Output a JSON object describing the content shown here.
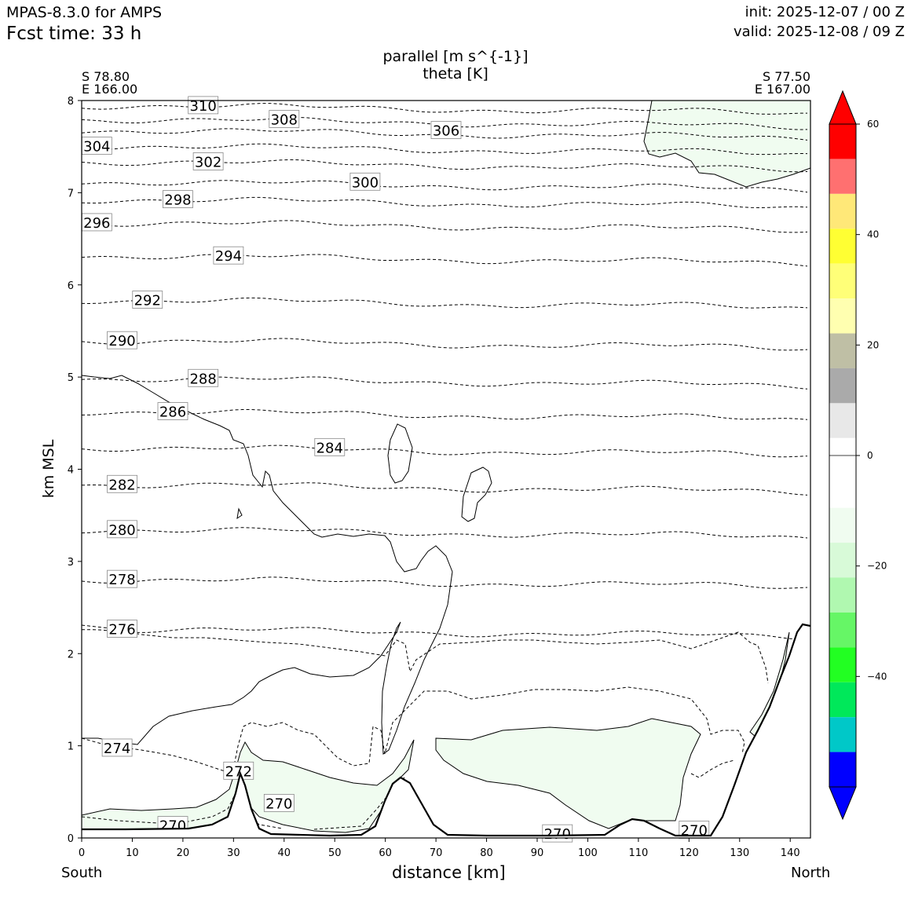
{
  "header": {
    "model": "MPAS-8.3.0 for AMPS",
    "fcst_time": "Fcst time:   33 h",
    "init": "init: 2025-12-07 / 00 Z",
    "valid": "valid: 2025-12-08 / 09 Z"
  },
  "chart_data": {
    "type": "cross-section",
    "title": "parallel [m s^{-1}]",
    "subtitle": "theta [K]",
    "xlabel": "distance [km]",
    "ylabel": "km MSL",
    "xlim": [
      0,
      144
    ],
    "ylim": [
      0,
      8
    ],
    "xticks": [
      0,
      10,
      20,
      30,
      40,
      50,
      60,
      70,
      80,
      90,
      100,
      110,
      120,
      130,
      140
    ],
    "yticks": [
      0,
      1,
      2,
      3,
      4,
      5,
      6,
      7,
      8
    ],
    "endpoints": {
      "left_lat": "S 78.80",
      "left_lon": "E 166.00",
      "left_label": "South",
      "right_lat": "S 77.50",
      "right_lon": "E 167.00",
      "right_label": "North"
    },
    "theta_contours": [
      {
        "level": 270,
        "label_x": 18,
        "label_y": 0.14
      },
      {
        "level": 270,
        "label_x": 39,
        "label_y": 0.38
      },
      {
        "level": 270,
        "label_x": 94,
        "label_y": 0.05
      },
      {
        "level": 270,
        "label_x": 121,
        "label_y": 0.09
      },
      {
        "level": 272,
        "label_x": 31,
        "label_y": 0.73
      },
      {
        "level": 274,
        "label_x": 7,
        "label_y": 0.98
      },
      {
        "level": 276,
        "label_x": 8,
        "label_y": 2.27
      },
      {
        "level": 278,
        "label_x": 8,
        "label_y": 2.81
      },
      {
        "level": 280,
        "label_x": 8,
        "label_y": 3.35
      },
      {
        "level": 282,
        "label_x": 8,
        "label_y": 3.84
      },
      {
        "level": 284,
        "label_x": 49,
        "label_y": 4.24
      },
      {
        "level": 286,
        "label_x": 18,
        "label_y": 4.63
      },
      {
        "level": 288,
        "label_x": 24,
        "label_y": 4.99
      },
      {
        "level": 290,
        "label_x": 8,
        "label_y": 5.4
      },
      {
        "level": 292,
        "label_x": 13,
        "label_y": 5.84
      },
      {
        "level": 294,
        "label_x": 29,
        "label_y": 6.32
      },
      {
        "level": 296,
        "label_x": 3,
        "label_y": 6.68
      },
      {
        "level": 298,
        "label_x": 19,
        "label_y": 6.93
      },
      {
        "level": 300,
        "label_x": 56,
        "label_y": 7.12
      },
      {
        "level": 302,
        "label_x": 25,
        "label_y": 7.34
      },
      {
        "level": 304,
        "label_x": 3,
        "label_y": 7.51
      },
      {
        "level": 306,
        "label_x": 72,
        "label_y": 7.68
      },
      {
        "level": 308,
        "label_x": 40,
        "label_y": 7.8
      },
      {
        "level": 310,
        "label_x": 24,
        "label_y": 7.95
      }
    ],
    "colorbar": {
      "ticks": [
        60,
        40,
        20,
        0,
        "−20",
        "−40"
      ],
      "tick_values": [
        60,
        40,
        20,
        0,
        -20,
        -40
      ],
      "range": [
        -60,
        60
      ],
      "colors_top_to_bottom": [
        "#ff0000",
        "#ff7070",
        "#ffe878",
        "#ffff33",
        "#ffff78",
        "#ffffb0",
        "#bfbfa5",
        "#aaaaaa",
        "#e8e8e8",
        "#ffffff",
        "#ffffff",
        "#f0fcf0",
        "#d8fad8",
        "#b0f8b0",
        "#66f666",
        "#22ff22",
        "#00e85a",
        "#00c8c8",
        "#0000ff"
      ],
      "extend_top_color": "#ff0000",
      "extend_bottom_color": "#0000ff"
    }
  }
}
